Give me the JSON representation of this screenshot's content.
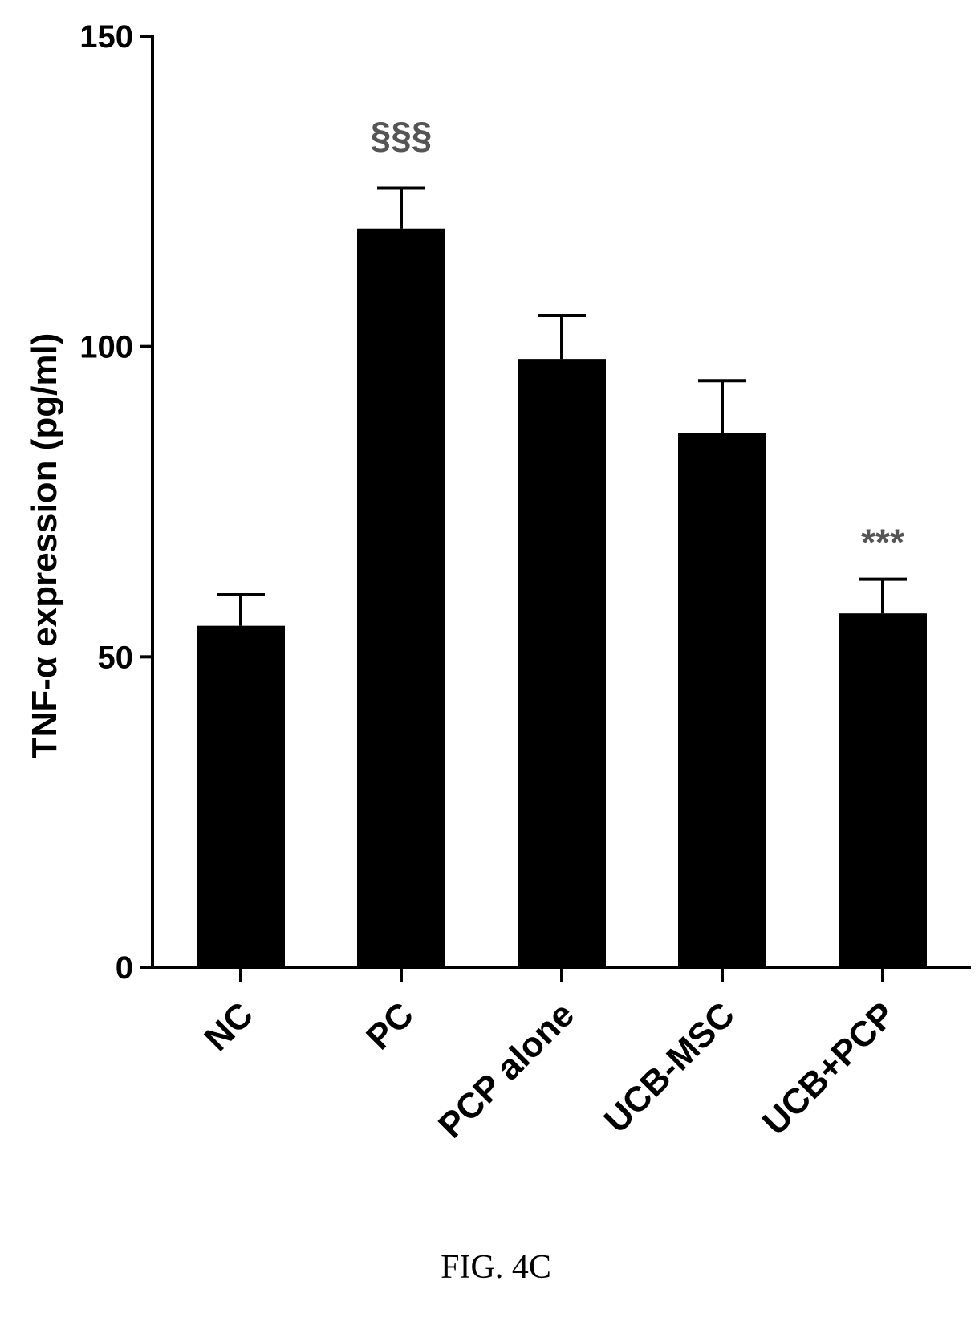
{
  "chart_data": {
    "type": "bar",
    "categories": [
      "NC",
      "PC",
      "PCP alone",
      "UCB-MSC",
      "UCB+PCP"
    ],
    "values": [
      55,
      119,
      98,
      86,
      57
    ],
    "errors": [
      5,
      6.5,
      7,
      8.5,
      5.5
    ],
    "annotations": [
      "",
      "§§§",
      "",
      "",
      "***"
    ],
    "title": "",
    "xlabel": "",
    "ylabel": "TNF-α expression (pg/ml)",
    "ylim": [
      0,
      150
    ],
    "yticks": [
      0,
      50,
      100,
      150
    ],
    "grid": false,
    "colors": {
      "bar": "#000000",
      "annotation_section": "#555555",
      "annotation_star": "#333333"
    }
  },
  "caption": "FIG. 4C"
}
